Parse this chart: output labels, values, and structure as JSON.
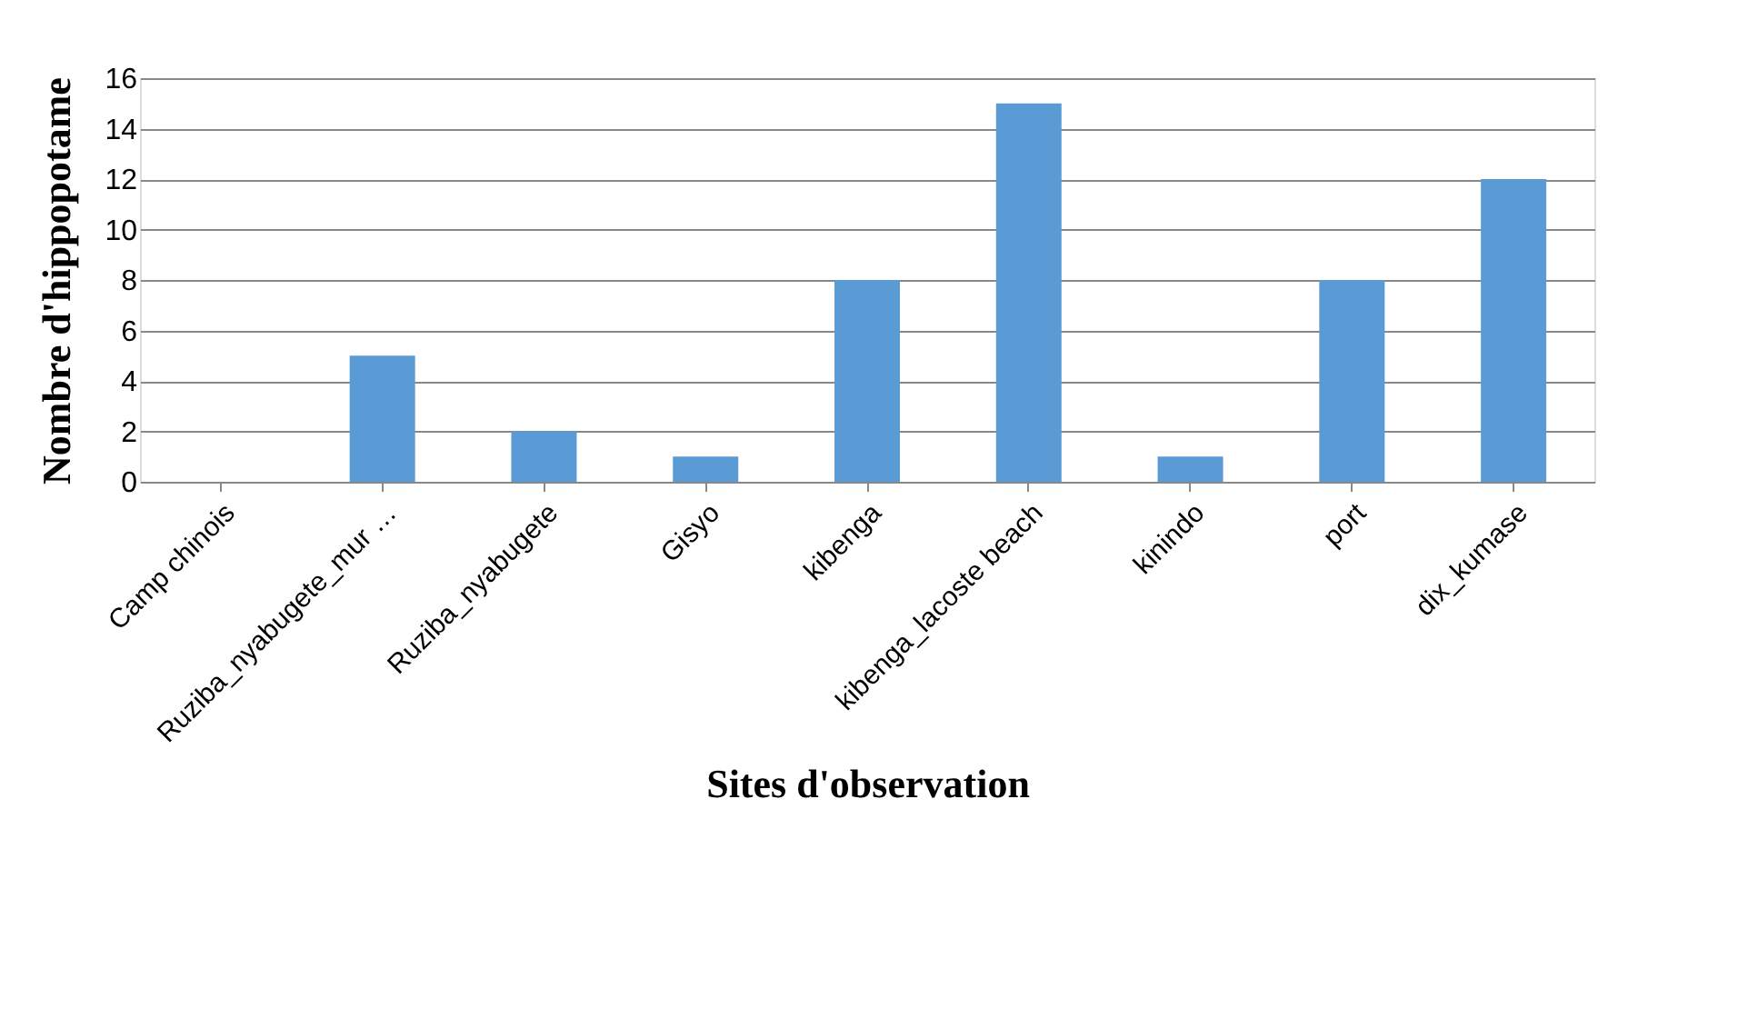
{
  "chart_data": {
    "type": "bar",
    "xlabel": "Sites d'observation",
    "ylabel": "Nombre d'hippopotame",
    "categories": [
      "Camp chinois",
      "Ruziba_nyabugete_mur …",
      "Ruziba_nyabugete",
      "Gisyo",
      "kibenga",
      "kibenga_lacoste beach",
      "kinindo",
      "port",
      "dix_kumase"
    ],
    "values": [
      0,
      5,
      2,
      1,
      8,
      15,
      1,
      8,
      12
    ],
    "color": "#5b9bd5",
    "ylim": [
      0,
      16
    ],
    "yticks": [
      0,
      2,
      4,
      6,
      8,
      10,
      12,
      14,
      16
    ],
    "grid": "y"
  }
}
